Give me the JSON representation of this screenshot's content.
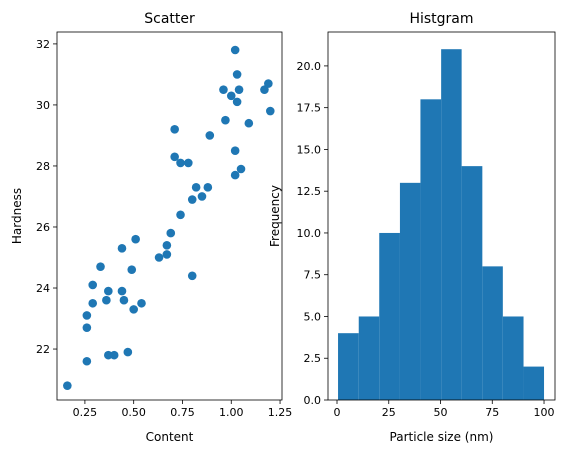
{
  "chart_data": [
    {
      "type": "scatter",
      "title": "Scatter",
      "x_label": "Content",
      "y_label": "Hardness",
      "color": "#1f77b4",
      "x": [
        0.16,
        0.26,
        0.26,
        0.26,
        0.29,
        0.29,
        0.33,
        0.36,
        0.37,
        0.37,
        0.4,
        0.44,
        0.44,
        0.45,
        0.47,
        0.49,
        0.5,
        0.51,
        0.54,
        0.63,
        0.67,
        0.67,
        0.69,
        0.71,
        0.71,
        0.74,
        0.74,
        0.78,
        0.8,
        0.8,
        0.82,
        0.85,
        0.88,
        0.89,
        0.96,
        0.97,
        1.0,
        1.02,
        1.02,
        1.02,
        1.03,
        1.03,
        1.04,
        1.05,
        1.09,
        1.17,
        1.19,
        1.2
      ],
      "values": [
        20.8,
        21.6,
        23.1,
        22.7,
        24.1,
        23.5,
        24.7,
        23.6,
        23.9,
        21.8,
        21.8,
        23.9,
        25.3,
        23.6,
        21.9,
        24.6,
        23.3,
        25.6,
        23.5,
        25.0,
        25.4,
        25.1,
        25.8,
        29.2,
        28.3,
        26.4,
        28.1,
        28.1,
        24.4,
        26.9,
        27.3,
        27.0,
        27.3,
        29.0,
        30.5,
        29.5,
        30.3,
        31.8,
        28.5,
        27.7,
        31.0,
        30.1,
        30.5,
        27.9,
        29.4,
        30.5,
        30.7,
        29.8
      ],
      "xlim": [
        0.107,
        1.26
      ],
      "xticks": [
        {
          "value": 0.25,
          "label": "0.25"
        },
        {
          "value": 0.5,
          "label": "0.50"
        },
        {
          "value": 0.75,
          "label": "0.75"
        },
        {
          "value": 1.0,
          "label": "1.00"
        },
        {
          "value": 1.25,
          "label": "1.25"
        }
      ],
      "ylim": [
        20.33,
        32.39
      ],
      "yticks": [
        22,
        24,
        26,
        28,
        30,
        32
      ]
    },
    {
      "type": "histogram",
      "title": "Histgram",
      "x_label": "Particle size (nm)",
      "y_label": "Frequency",
      "color": "#1f77b4",
      "bins": [
        0.5,
        10.5,
        20.4,
        30.4,
        40.3,
        50.3,
        60.2,
        70.2,
        80.1,
        90.1,
        100
      ],
      "values": [
        4,
        5,
        10,
        13,
        18,
        21,
        14,
        8,
        5,
        2
      ],
      "xlim": [
        -4.35,
        105.3
      ],
      "xticks": [
        0,
        25,
        50,
        75,
        100
      ],
      "ylim": [
        0,
        22.03
      ],
      "yticks": [
        {
          "value": 0,
          "label": "0.0"
        },
        {
          "value": 2.5,
          "label": "2.5"
        },
        {
          "value": 5,
          "label": "5.0"
        },
        {
          "value": 7.5,
          "label": "7.5"
        },
        {
          "value": 10,
          "label": "10.0"
        },
        {
          "value": 12.5,
          "label": "12.5"
        },
        {
          "value": 15,
          "label": "15.0"
        },
        {
          "value": 17.5,
          "label": "17.5"
        },
        {
          "value": 20,
          "label": "20.0"
        }
      ]
    }
  ]
}
